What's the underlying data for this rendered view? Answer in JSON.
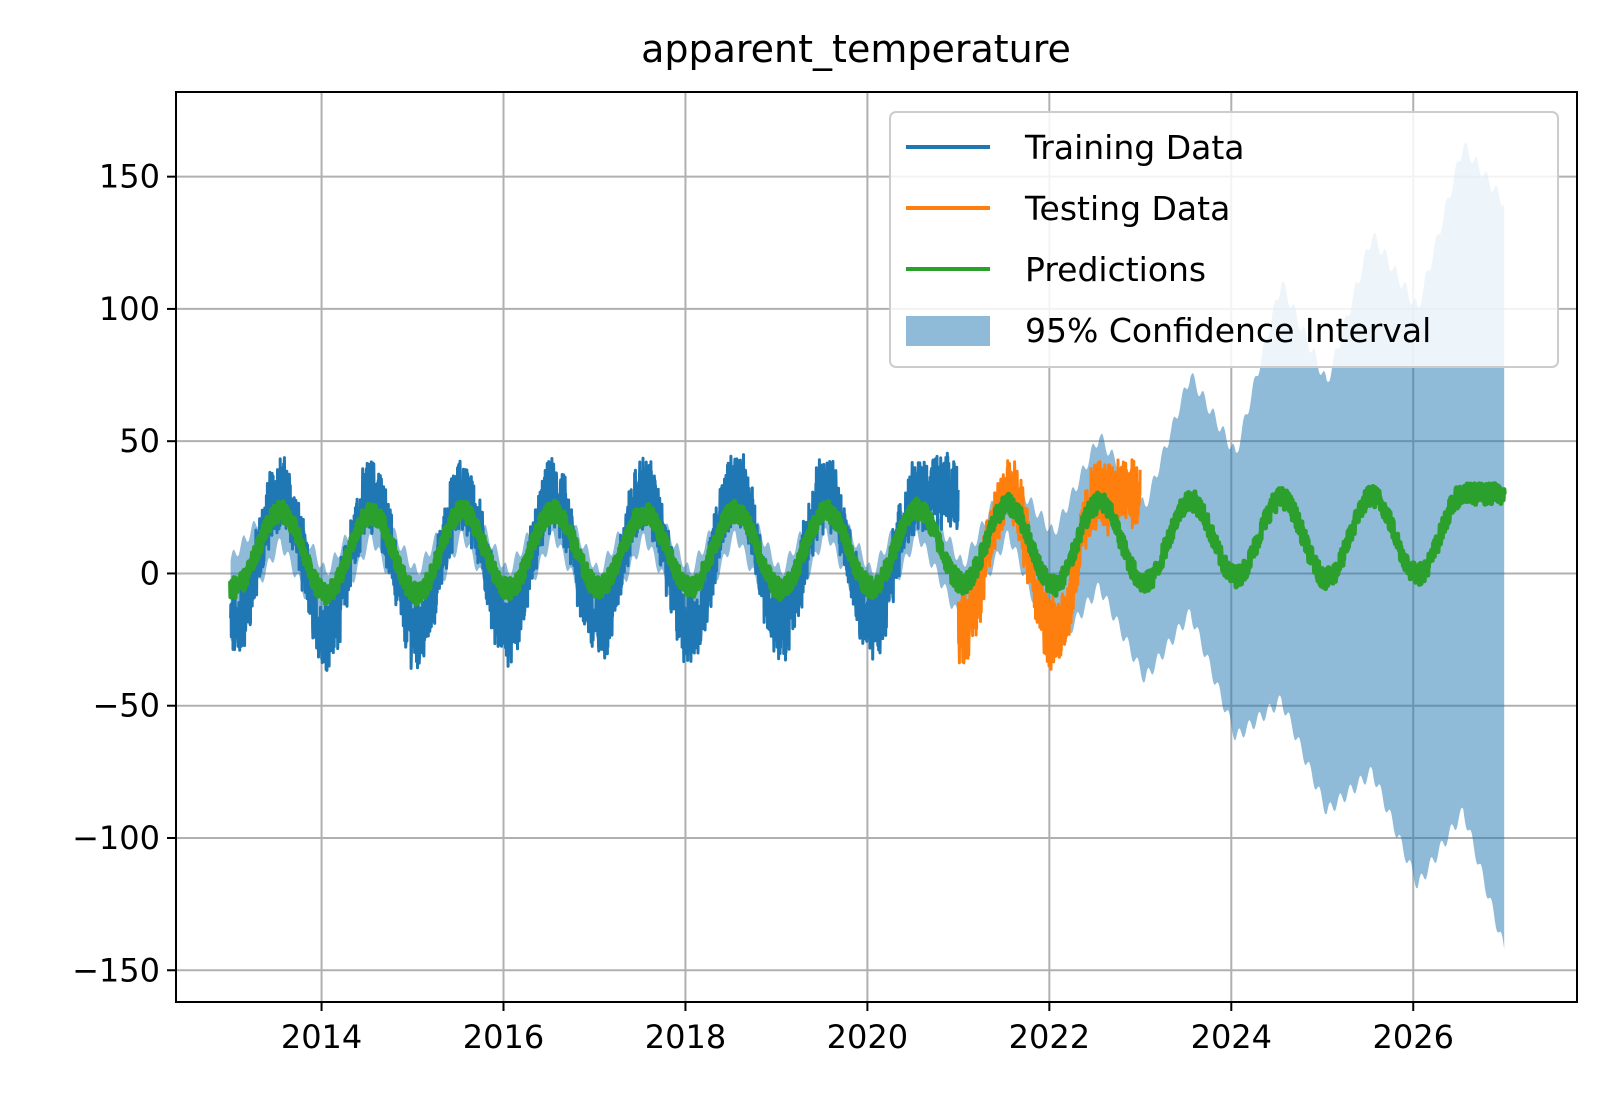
{
  "chart_data": {
    "type": "line",
    "title": "apparent_temperature",
    "xlabel": "",
    "ylabel": "",
    "xlim": [
      2012.4,
      2027.8
    ],
    "ylim": [
      -162,
      182
    ],
    "x_ticks": [
      2014,
      2016,
      2018,
      2020,
      2022,
      2024,
      2026
    ],
    "x_tick_labels": [
      "2014",
      "2016",
      "2018",
      "2020",
      "2022",
      "2024",
      "2026"
    ],
    "y_ticks": [
      150,
      100,
      50,
      0,
      -50,
      -100,
      -150
    ],
    "y_tick_labels": [
      "150",
      "100",
      "50",
      "0",
      "−50",
      "−100",
      "−150"
    ],
    "grid": true,
    "legend_position": "top-right",
    "series": [
      {
        "name": "Training Data",
        "color": "#1f77b4",
        "x_range": [
          2013.0,
          2021.0
        ],
        "seasonal_mean": 5,
        "amplitude": 17,
        "noise_band": 22,
        "peaks": [
          [
            2013.55,
            37
          ],
          [
            2014.55,
            35
          ],
          [
            2015.55,
            35
          ],
          [
            2016.55,
            35
          ],
          [
            2017.55,
            36
          ],
          [
            2018.55,
            40
          ],
          [
            2019.55,
            37
          ],
          [
            2020.55,
            36
          ]
        ],
        "troughs": [
          [
            2013.05,
            -27
          ],
          [
            2014.05,
            -30
          ],
          [
            2015.05,
            -31
          ],
          [
            2016.05,
            -29
          ],
          [
            2017.05,
            -28
          ],
          [
            2018.05,
            -30
          ],
          [
            2019.05,
            -27
          ],
          [
            2020.05,
            -26
          ]
        ]
      },
      {
        "name": "Testing Data",
        "color": "#ff7f0e",
        "x_range": [
          2021.0,
          2023.0
        ],
        "seasonal_mean": 5,
        "amplitude": 17,
        "noise_band": 22,
        "peaks": [
          [
            2021.55,
            37
          ],
          [
            2022.55,
            36
          ]
        ],
        "troughs": [
          [
            2021.05,
            -28
          ],
          [
            2022.05,
            -31
          ]
        ]
      },
      {
        "name": "Predictions",
        "color": "#2ca02c",
        "x_range": [
          2013.0,
          2027.0
        ],
        "seasonal_mean": 8,
        "amplitude": 18,
        "peaks": [
          [
            2013.55,
            25
          ],
          [
            2014.55,
            24
          ],
          [
            2015.55,
            25
          ],
          [
            2016.55,
            25
          ],
          [
            2017.55,
            24
          ],
          [
            2018.55,
            25
          ],
          [
            2019.55,
            25
          ],
          [
            2020.55,
            26
          ],
          [
            2021.55,
            28
          ],
          [
            2022.55,
            29
          ],
          [
            2023.55,
            30
          ],
          [
            2024.55,
            31
          ],
          [
            2025.55,
            32
          ],
          [
            2026.55,
            33
          ]
        ],
        "troughs": [
          [
            2013.05,
            -10
          ],
          [
            2014.05,
            -13
          ],
          [
            2015.05,
            -13
          ],
          [
            2016.05,
            -11
          ],
          [
            2017.05,
            -10
          ],
          [
            2018.05,
            -10
          ],
          [
            2019.05,
            -11
          ],
          [
            2020.05,
            -10
          ],
          [
            2021.05,
            -8
          ],
          [
            2022.05,
            -9
          ],
          [
            2023.05,
            -8
          ],
          [
            2024.05,
            -5
          ],
          [
            2025.05,
            -6
          ],
          [
            2026.05,
            -4
          ]
        ]
      }
    ],
    "confidence_interval": {
      "name": "95% Confidence Interval",
      "color": "#1f77b4",
      "opacity": 0.5,
      "x_range": [
        2013.0,
        2027.0
      ],
      "upper": [
        [
          2013.0,
          5
        ],
        [
          2013.55,
          32
        ],
        [
          2014.05,
          0
        ],
        [
          2014.55,
          30
        ],
        [
          2015.05,
          0
        ],
        [
          2015.55,
          32
        ],
        [
          2016.05,
          0
        ],
        [
          2016.55,
          32
        ],
        [
          2017.05,
          0
        ],
        [
          2017.55,
          33
        ],
        [
          2018.05,
          0
        ],
        [
          2018.55,
          34
        ],
        [
          2019.05,
          0
        ],
        [
          2019.55,
          33
        ],
        [
          2020.05,
          0
        ],
        [
          2020.55,
          34
        ],
        [
          2021.05,
          3
        ],
        [
          2021.55,
          38
        ],
        [
          2022.05,
          15
        ],
        [
          2022.55,
          52
        ],
        [
          2023.05,
          25
        ],
        [
          2023.55,
          75
        ],
        [
          2024.05,
          45
        ],
        [
          2024.55,
          110
        ],
        [
          2025.05,
          72
        ],
        [
          2025.55,
          128
        ],
        [
          2026.05,
          100
        ],
        [
          2026.55,
          162
        ],
        [
          2027.0,
          140
        ]
      ],
      "lower": [
        [
          2013.0,
          -25
        ],
        [
          2013.55,
          12
        ],
        [
          2014.05,
          -25
        ],
        [
          2014.55,
          14
        ],
        [
          2015.05,
          -25
        ],
        [
          2015.55,
          15
        ],
        [
          2016.05,
          -24
        ],
        [
          2016.55,
          15
        ],
        [
          2017.05,
          -24
        ],
        [
          2017.55,
          14
        ],
        [
          2018.05,
          -24
        ],
        [
          2018.55,
          15
        ],
        [
          2019.05,
          -24
        ],
        [
          2019.55,
          16
        ],
        [
          2020.05,
          -24
        ],
        [
          2020.55,
          15
        ],
        [
          2021.05,
          -20
        ],
        [
          2021.55,
          15
        ],
        [
          2022.05,
          -30
        ],
        [
          2022.55,
          -5
        ],
        [
          2023.05,
          -40
        ],
        [
          2023.55,
          -15
        ],
        [
          2024.05,
          -62
        ],
        [
          2024.55,
          -48
        ],
        [
          2025.05,
          -90
        ],
        [
          2025.55,
          -75
        ],
        [
          2026.05,
          -118
        ],
        [
          2026.55,
          -90
        ],
        [
          2027.0,
          -142
        ]
      ]
    }
  }
}
